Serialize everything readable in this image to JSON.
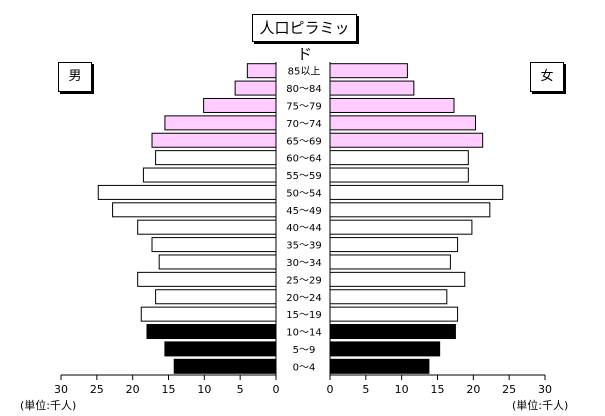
{
  "chart_data": {
    "type": "bar",
    "orientation": "horizontal",
    "subtype": "population-pyramid",
    "title": "人口ピラミッド",
    "left_label": "男",
    "right_label": "女",
    "unit_label_left": "(単位:千人)",
    "unit_label_right": "(単位:千人)",
    "xlim": [
      0,
      30
    ],
    "x_ticks": [
      0,
      5,
      10,
      15,
      20,
      25,
      30
    ],
    "categories": [
      "0～4",
      "5～9",
      "10～14",
      "15～19",
      "20～24",
      "25～29",
      "30～34",
      "35～39",
      "40～44",
      "45～49",
      "50～54",
      "55～59",
      "60～64",
      "65～69",
      "70～74",
      "75～79",
      "80～84",
      "85以上"
    ],
    "series": [
      {
        "name": "男",
        "values": [
          14.2,
          15.5,
          18.0,
          18.8,
          16.8,
          19.3,
          16.3,
          17.3,
          19.3,
          22.8,
          24.8,
          18.5,
          16.8,
          17.3,
          15.5,
          10.1,
          5.7,
          4.0
        ]
      },
      {
        "name": "女",
        "values": [
          13.8,
          15.3,
          17.5,
          17.8,
          16.3,
          18.8,
          16.8,
          17.8,
          19.8,
          22.3,
          24.1,
          19.3,
          19.3,
          21.3,
          20.3,
          17.3,
          11.7,
          10.8
        ]
      }
    ],
    "bar_colors": [
      "#000000",
      "#000000",
      "#000000",
      "#ffffff",
      "#ffffff",
      "#ffffff",
      "#ffffff",
      "#ffffff",
      "#ffffff",
      "#ffffff",
      "#ffffff",
      "#ffffff",
      "#ffffff",
      "#ffccff",
      "#ffccff",
      "#ffccff",
      "#ffccff",
      "#ffccff"
    ],
    "grid": false
  }
}
